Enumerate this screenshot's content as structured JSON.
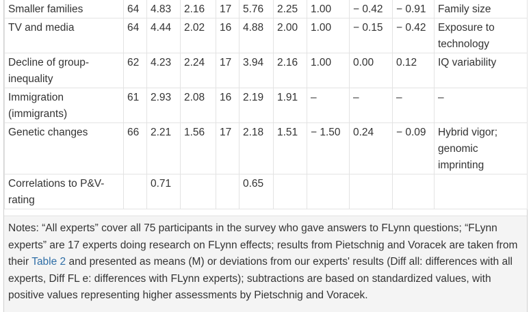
{
  "rows": [
    {
      "label": "Smaller families",
      "c1": "64",
      "c2": "4.83",
      "c3": "2.16",
      "c4": "17",
      "c5": "5.76",
      "c6": "2.25",
      "c7": "1.00",
      "c8": "− 0.42",
      "c9": "− 0.91",
      "c10": "Family size"
    },
    {
      "label": "TV and media",
      "c1": "64",
      "c2": "4.44",
      "c3": "2.02",
      "c4": "16",
      "c5": "4.88",
      "c6": "2.00",
      "c7": "1.00",
      "c8": "− 0.15",
      "c9": "− 0.42",
      "c10": "Exposure to technology"
    },
    {
      "label": "Decline of group-inequality",
      "c1": "62",
      "c2": "4.23",
      "c3": "2.24",
      "c4": "17",
      "c5": "3.94",
      "c6": "2.16",
      "c7": "1.00",
      "c8": "0.00",
      "c9": "0.12",
      "c10": "IQ variability"
    },
    {
      "label": "Immigration (immigrants)",
      "c1": "61",
      "c2": "2.93",
      "c3": "2.08",
      "c4": "16",
      "c5": "2.19",
      "c6": "1.91",
      "c7": "–",
      "c8": "–",
      "c9": "–",
      "c10": "–"
    },
    {
      "label": "Genetic changes",
      "c1": "66",
      "c2": "2.21",
      "c3": "1.56",
      "c4": "17",
      "c5": "2.18",
      "c6": "1.51",
      "c7": "− 1.50",
      "c8": "0.24",
      "c9": "− 0.09",
      "c10": "Hybrid vigor; genomic imprinting"
    },
    {
      "label": "Correlations to P&V-rating",
      "c1": "",
      "c2": "0.71",
      "c3": "",
      "c4": "",
      "c5": "0.65",
      "c6": "",
      "c7": "",
      "c8": "",
      "c9": "",
      "c10": ""
    }
  ],
  "notes": {
    "part1": "Notes: “All experts” cover all 75 participants in the survey who gave answers to FLynn questions; “FLynn experts” are 17 experts doing research on FLynn effects; results from Pietschnig and Voracek are taken from their ",
    "link": "Table 2",
    "part2": " and presented as means (M) or deviations from our experts' results (Diff all: differences with all experts, Diff FL e: differences with FLynn experts); subtractions are based on standardized values, with positive values representing higher assessments by Pietschnig and Voracek."
  }
}
